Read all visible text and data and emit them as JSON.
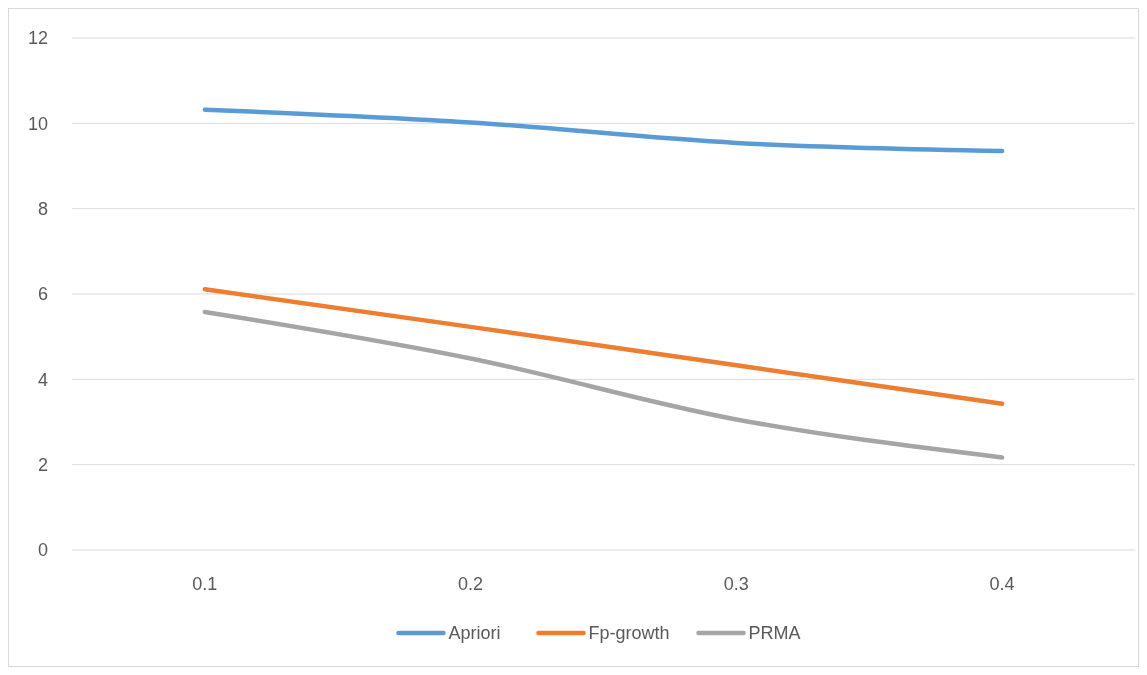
{
  "chart_data": {
    "type": "line",
    "categories": [
      "0.1",
      "0.2",
      "0.3",
      "0.4"
    ],
    "series": [
      {
        "name": "Apriori",
        "color": "#5b9bd5",
        "values": [
          10.32,
          10.02,
          9.54,
          9.35
        ]
      },
      {
        "name": "Fp-growth",
        "color": "#ed7d31",
        "values": [
          6.11,
          5.23,
          4.33,
          3.43
        ]
      },
      {
        "name": "PRMA",
        "color": "#a5a5a5",
        "values": [
          5.58,
          4.49,
          3.06,
          2.17
        ]
      }
    ],
    "ylim": [
      0,
      12
    ],
    "yticks": [
      0,
      2,
      4,
      6,
      8,
      10,
      12
    ],
    "grid": "y",
    "legend": "bottom",
    "marker": "none",
    "line_style": "solid"
  }
}
